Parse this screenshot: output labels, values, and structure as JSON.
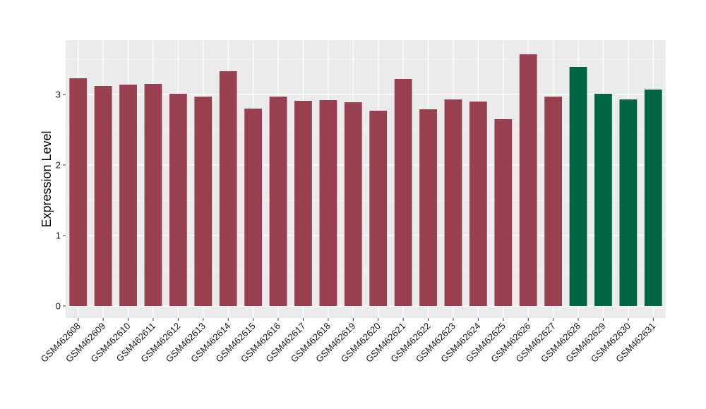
{
  "chart_data": {
    "type": "bar",
    "title": "",
    "xlabel": "",
    "ylabel": "Expression Level",
    "ylim": [
      -0.17,
      3.77
    ],
    "yticks": [
      0,
      1,
      2,
      3
    ],
    "grid": true,
    "categories": [
      "GSM462608",
      "GSM462609",
      "GSM462610",
      "GSM462611",
      "GSM462612",
      "GSM462613",
      "GSM462614",
      "GSM462615",
      "GSM462616",
      "GSM462617",
      "GSM462618",
      "GSM462619",
      "GSM462620",
      "GSM462621",
      "GSM462622",
      "GSM462623",
      "GSM462624",
      "GSM462625",
      "GSM462626",
      "GSM462627",
      "GSM462628",
      "GSM462629",
      "GSM462630",
      "GSM462631"
    ],
    "values": [
      3.23,
      3.12,
      3.14,
      3.15,
      3.01,
      2.97,
      3.33,
      2.8,
      2.97,
      2.91,
      2.92,
      2.89,
      2.77,
      3.22,
      2.79,
      2.93,
      2.9,
      2.65,
      3.57,
      2.97,
      3.39,
      3.01,
      2.93,
      3.07
    ],
    "groups": [
      "a",
      "a",
      "a",
      "a",
      "a",
      "a",
      "a",
      "a",
      "a",
      "a",
      "a",
      "a",
      "a",
      "a",
      "a",
      "a",
      "a",
      "a",
      "a",
      "a",
      "b",
      "b",
      "b",
      "b"
    ],
    "colors": {
      "a": "#98404F",
      "b": "#006544"
    },
    "panel_background": "#EBEBEB",
    "gridline_color": "#FFFFFF"
  }
}
